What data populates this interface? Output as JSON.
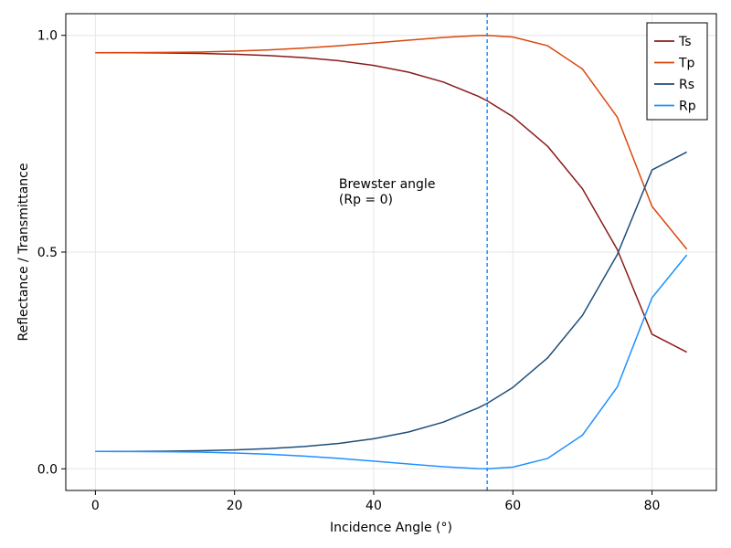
{
  "chart_data": {
    "type": "line",
    "title": "",
    "xlabel": "Incidence Angle (°)",
    "ylabel": "Reflectance / Transmittance",
    "xlim": [
      -4.25,
      89.25
    ],
    "ylim": [
      -0.05,
      1.05
    ],
    "xticks": [
      0,
      20,
      40,
      60,
      80
    ],
    "yticks": [
      0.0,
      0.5,
      1.0
    ],
    "xtick_labels": [
      "0",
      "20",
      "40",
      "60",
      "80"
    ],
    "ytick_labels": [
      "0.0",
      "0.5",
      "1.0"
    ],
    "grid": true,
    "legend_position": "top-right",
    "x": [
      0,
      5,
      10,
      15,
      20,
      25,
      30,
      35,
      40,
      45,
      50,
      55,
      56.31,
      60,
      65,
      70,
      75,
      80,
      85
    ],
    "series": [
      {
        "name": "Ts",
        "color": "#8B1A1A",
        "values": [
          0.96,
          0.9599,
          0.9594,
          0.9584,
          0.9564,
          0.9534,
          0.9486,
          0.9414,
          0.9307,
          0.9151,
          0.8924,
          0.8596,
          0.849,
          0.8123,
          0.7441,
          0.6462,
          0.506,
          0.3105,
          0.2691
        ]
      },
      {
        "name": "Tp",
        "color": "#D9460B",
        "values": [
          0.96,
          0.9601,
          0.9606,
          0.9616,
          0.9636,
          0.9666,
          0.9708,
          0.9761,
          0.9823,
          0.989,
          0.9953,
          0.9996,
          1.0,
          0.9962,
          0.9761,
          0.9224,
          0.8116,
          0.6053,
          0.5066
        ]
      },
      {
        "name": "Rs",
        "color": "#1F4E79",
        "values": [
          0.04,
          0.0401,
          0.0406,
          0.0416,
          0.0436,
          0.0466,
          0.0514,
          0.0586,
          0.0693,
          0.0849,
          0.1076,
          0.1404,
          0.151,
          0.1877,
          0.2559,
          0.3538,
          0.494,
          0.6895,
          0.7309
        ]
      },
      {
        "name": "Rp",
        "color": "#1E90FF",
        "values": [
          0.04,
          0.0399,
          0.0394,
          0.0384,
          0.0364,
          0.0334,
          0.0292,
          0.0239,
          0.0177,
          0.011,
          0.0047,
          0.0004,
          0.0,
          0.0038,
          0.0239,
          0.0776,
          0.1884,
          0.3947,
          0.4934
        ]
      }
    ],
    "vline": {
      "x": 56.31,
      "color": "#1E90FF",
      "style": "dashed"
    },
    "annotation": {
      "line1": "Brewster angle",
      "line2": "(Rp = 0)",
      "x": 35,
      "y": 0.62
    }
  }
}
